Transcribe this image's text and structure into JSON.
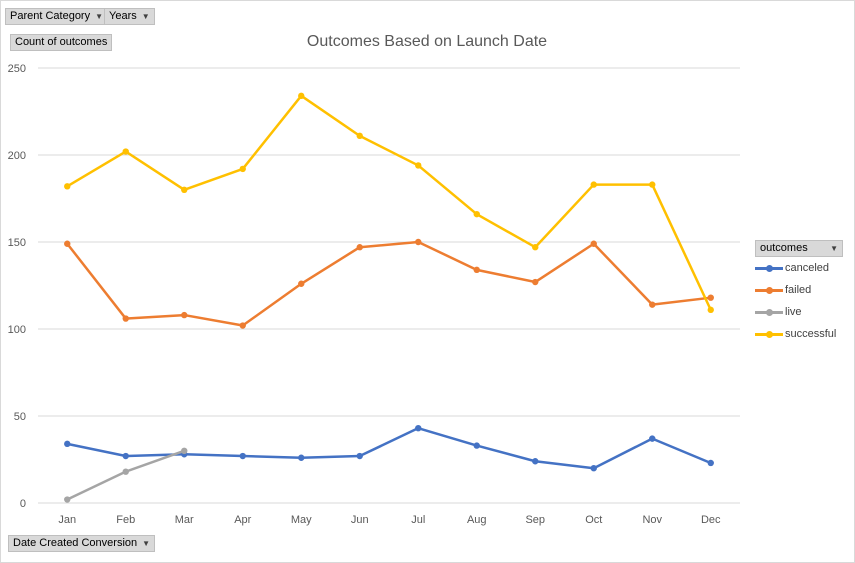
{
  "filters": {
    "parent_category": "Parent Category",
    "years": "Years",
    "count_label": "Count of outcomes",
    "date_field": "Date Created Conversion"
  },
  "legend": {
    "header": "outcomes"
  },
  "chart_data": {
    "type": "line",
    "title": "Outcomes Based on Launch Date",
    "xlabel": "",
    "ylabel": "",
    "ylim": [
      0,
      250
    ],
    "yticks": [
      0,
      50,
      100,
      150,
      200,
      250
    ],
    "grid": true,
    "legend_position": "right",
    "categories": [
      "Jan",
      "Feb",
      "Mar",
      "Apr",
      "May",
      "Jun",
      "Jul",
      "Aug",
      "Sep",
      "Oct",
      "Nov",
      "Dec"
    ],
    "series": [
      {
        "name": "canceled",
        "color": "#4472c4",
        "values": [
          34,
          27,
          28,
          27,
          26,
          27,
          43,
          33,
          24,
          20,
          37,
          23
        ]
      },
      {
        "name": "failed",
        "color": "#ed7d31",
        "values": [
          149,
          106,
          108,
          102,
          126,
          147,
          150,
          134,
          127,
          149,
          114,
          118
        ]
      },
      {
        "name": "live",
        "color": "#a5a5a5",
        "values": [
          2,
          18,
          30,
          null,
          null,
          null,
          null,
          null,
          null,
          null,
          null,
          null
        ]
      },
      {
        "name": "successful",
        "color": "#ffc000",
        "values": [
          182,
          202,
          180,
          192,
          234,
          211,
          194,
          166,
          147,
          183,
          183,
          111
        ]
      }
    ]
  }
}
